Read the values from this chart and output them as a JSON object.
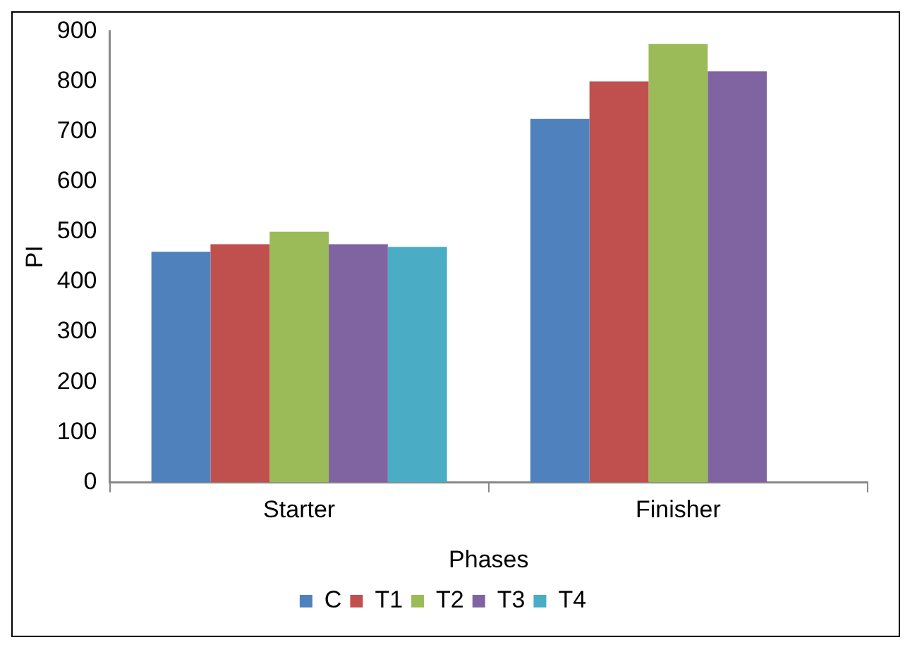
{
  "chart_data": {
    "type": "bar",
    "xlabel": "Phases",
    "ylabel": "PI",
    "categories": [
      "Starter",
      "Finisher"
    ],
    "series": [
      {
        "name": "C",
        "color": "#4f81bd",
        "values": [
          460,
          725
        ]
      },
      {
        "name": "T1",
        "color": "#c0504d",
        "values": [
          475,
          800
        ]
      },
      {
        "name": "T2",
        "color": "#9bbb59",
        "values": [
          500,
          875
        ]
      },
      {
        "name": "T3",
        "color": "#8064a2",
        "values": [
          475,
          820
        ]
      },
      {
        "name": "T4",
        "color": "#4bacc6",
        "values": [
          470,
          0
        ]
      }
    ],
    "ylim": [
      0,
      900
    ],
    "yticks": [
      0,
      100,
      200,
      300,
      400,
      500,
      600,
      700,
      800,
      900
    ],
    "grid": false,
    "legend": "bottom"
  }
}
